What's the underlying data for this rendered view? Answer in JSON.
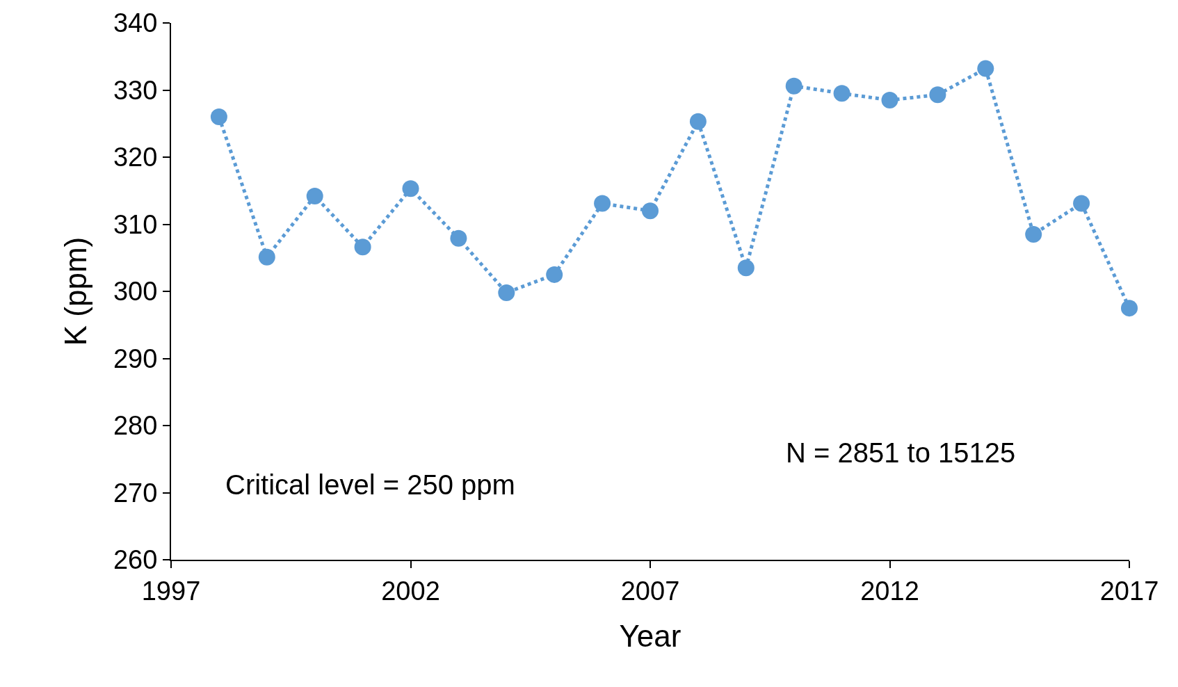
{
  "chart_data": {
    "type": "line",
    "xlabel": "Year",
    "ylabel": "K (ppm)",
    "x": [
      1998,
      1999,
      2000,
      2001,
      2002,
      2003,
      2004,
      2005,
      2006,
      2007,
      2008,
      2009,
      2010,
      2011,
      2012,
      2013,
      2014,
      2015,
      2016,
      2017
    ],
    "series": [
      {
        "color": "#5b9bd5",
        "values": [
          326.0,
          305.1,
          314.2,
          306.6,
          315.3,
          307.9,
          299.8,
          302.5,
          313.1,
          312.0,
          325.3,
          303.5,
          330.6,
          329.5,
          328.5,
          329.3,
          333.2,
          308.5,
          313.1,
          297.5
        ]
      }
    ],
    "xlim": [
      1997,
      2017
    ],
    "xticks": [
      1997,
      2002,
      2007,
      2012,
      2017
    ],
    "ylim": [
      260,
      340
    ],
    "yticks": [
      260,
      270,
      280,
      290,
      300,
      310,
      320,
      330,
      340
    ],
    "annotations": [
      "Critical level = 250 ppm",
      "N = 2851 to 15125"
    ],
    "marker": "circle",
    "line_style": "dotted"
  }
}
